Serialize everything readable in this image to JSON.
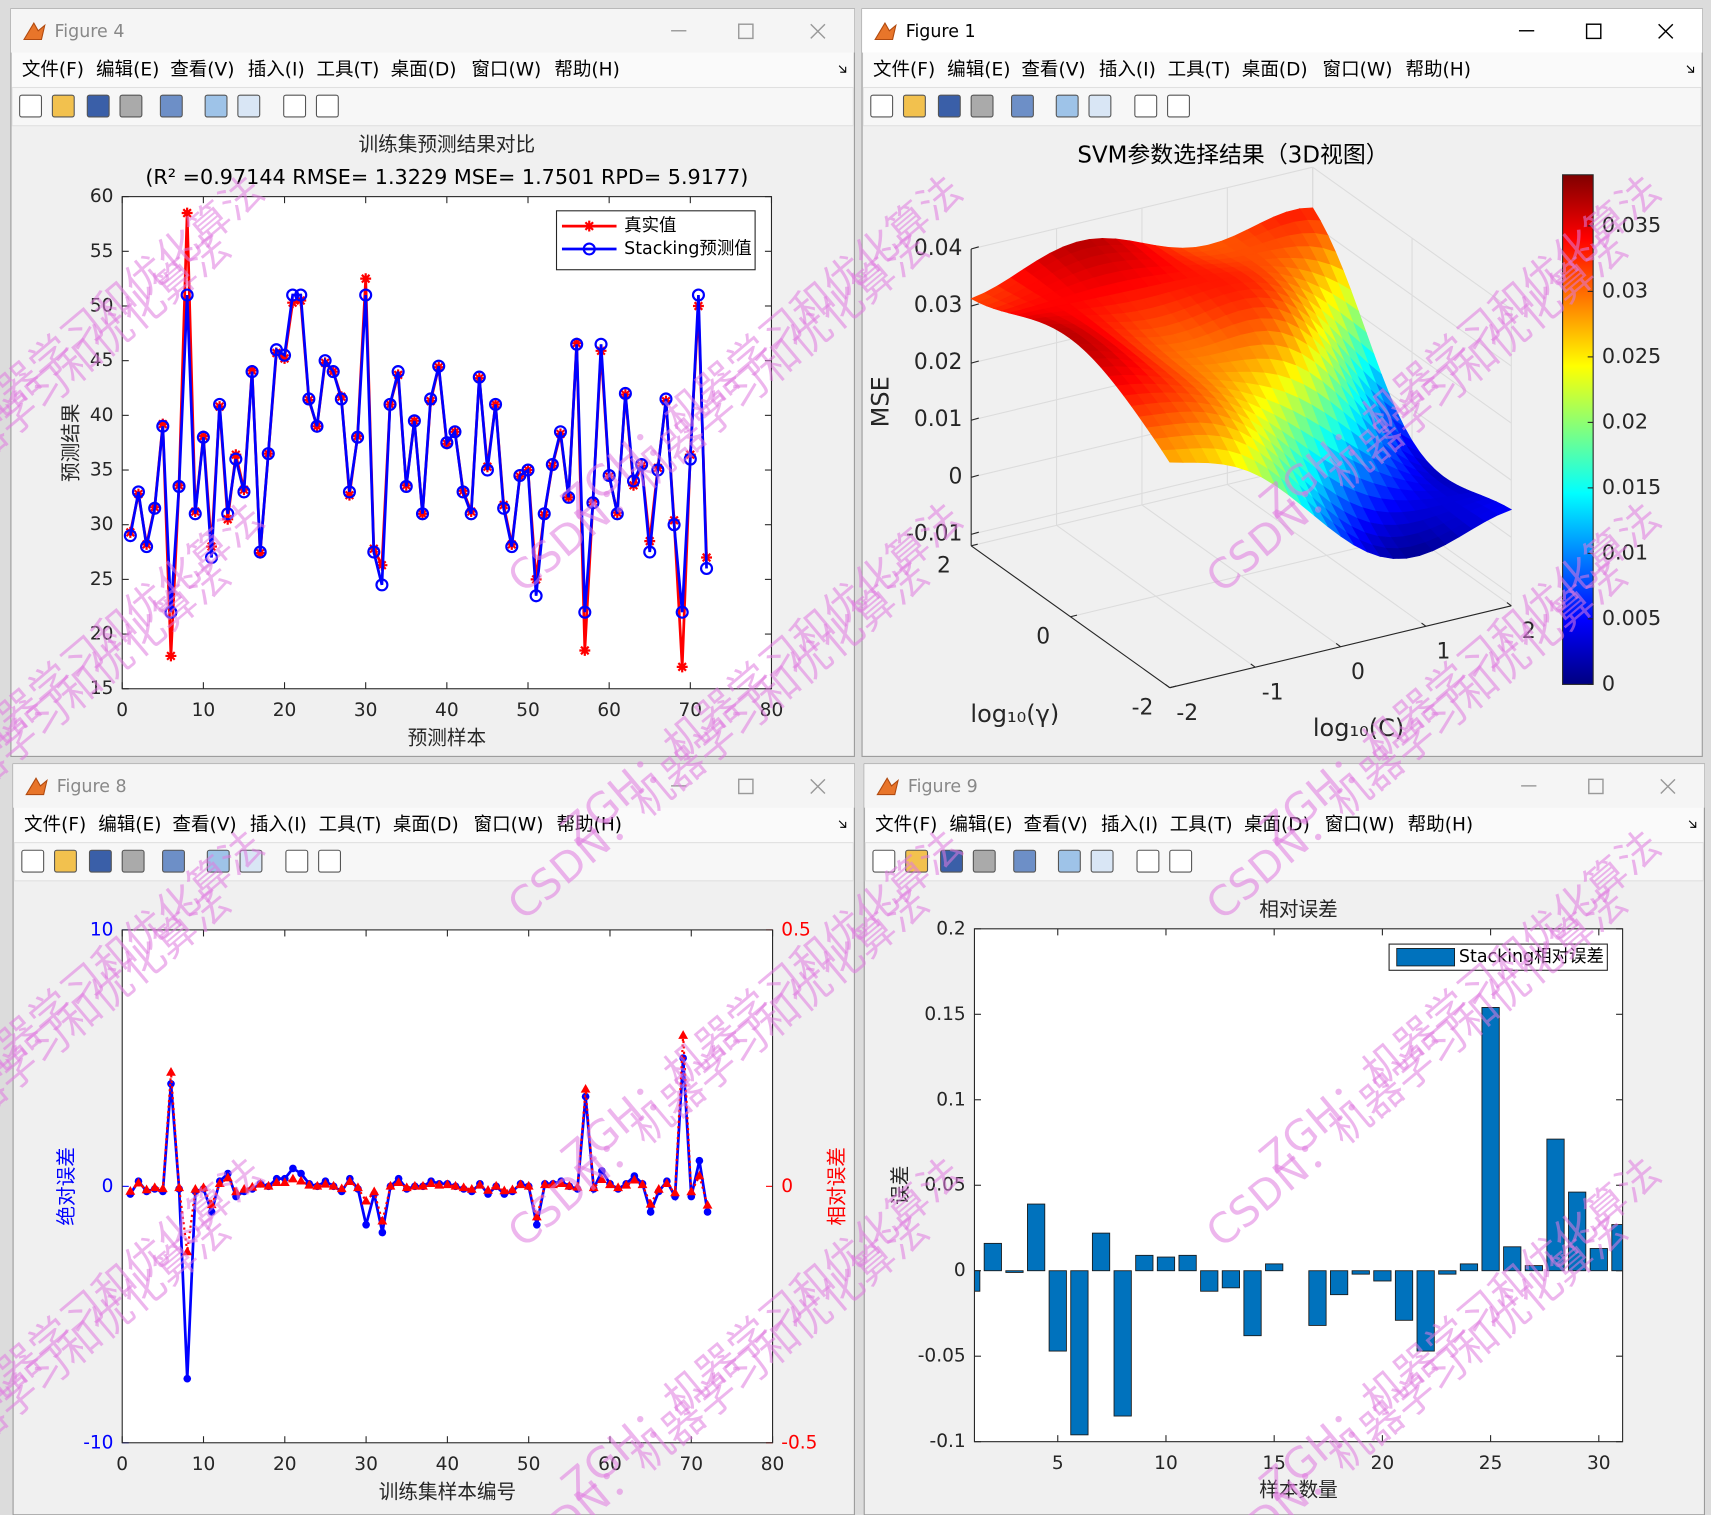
{
  "windows": [
    {
      "title": "Figure 4"
    },
    {
      "title": "Figure 1"
    },
    {
      "title": "Figure 8"
    },
    {
      "title": "Figure 9"
    }
  ],
  "menu": [
    "文件(F)",
    "编辑(E)",
    "查看(V)",
    "插入(I)",
    "工具(T)",
    "桌面(D)",
    "窗口(W)",
    "帮助(H)"
  ],
  "watermark": [
    "ZGH：机器学习和优化算法",
    "CSDN：机器学习和优化算法"
  ],
  "chart_data": [
    {
      "type": "line",
      "title": "训练集预测结果对比",
      "subtitle": "(R² =0.97144 RMSE= 1.3229 MSE= 1.7501 RPD= 5.9177)",
      "xlabel": "预测样本",
      "ylabel": "预测结果",
      "x": [
        1,
        2,
        3,
        4,
        5,
        6,
        7,
        8,
        9,
        10,
        11,
        12,
        13,
        14,
        15,
        16,
        17,
        18,
        19,
        20,
        21,
        22,
        23,
        24,
        25,
        26,
        27,
        28,
        29,
        30,
        31,
        32,
        33,
        34,
        35,
        36,
        37,
        38,
        39,
        40,
        41,
        42,
        43,
        44,
        45,
        46,
        47,
        48,
        49,
        50,
        51,
        52,
        53,
        54,
        55,
        56,
        57,
        58,
        59,
        60,
        61,
        62,
        63,
        64,
        65,
        66,
        67,
        68,
        69,
        70,
        71,
        72
      ],
      "series": [
        {
          "name": "真实值",
          "color": "#ff0000",
          "marker": "star",
          "linestyle": "solid",
          "values": [
            29.3,
            32.8,
            28.2,
            31.6,
            39.2,
            18,
            33.6,
            58.5,
            31.2,
            38.1,
            28,
            40.8,
            30.5,
            36.4,
            33.2,
            44.1,
            27.4,
            36.5,
            45.7,
            45.2,
            50.3,
            50.5,
            41.4,
            39,
            44.8,
            44,
            41.7,
            32.7,
            38.1,
            52.5,
            27.8,
            26.3,
            41,
            43.7,
            33.6,
            39.5,
            31,
            41.3,
            44.4,
            37.4,
            38.5,
            33.1,
            31.2,
            43.4,
            35.3,
            41,
            31.8,
            28.2,
            34.4,
            35,
            25,
            30.9,
            35.4,
            38.3,
            32.5,
            46.6,
            18.5,
            32.1,
            45.9,
            34.4,
            31.1,
            41.9,
            33.6,
            35.4,
            28.5,
            35.2,
            41.3,
            30.4,
            17,
            36.4,
            50,
            27
          ]
        },
        {
          "name": "Stacking预测值",
          "color": "#0000ff",
          "marker": "circle",
          "linestyle": "solid",
          "values": [
            29,
            33,
            28,
            31.5,
            39,
            22,
            33.5,
            51,
            31,
            38,
            27,
            41,
            31,
            36,
            33,
            44,
            27.5,
            36.5,
            46,
            45.5,
            51,
            51,
            41.5,
            39,
            45,
            44,
            41.5,
            33,
            38,
            51,
            27.5,
            24.5,
            41,
            44,
            33.5,
            39.5,
            31,
            41.5,
            44.5,
            37.5,
            38.5,
            33,
            31,
            43.5,
            35,
            41,
            31.5,
            28,
            34.5,
            35,
            23.5,
            31,
            35.5,
            38.5,
            32.5,
            46.5,
            22,
            32,
            46.5,
            34.5,
            31,
            42,
            34,
            35.5,
            27.5,
            35,
            41.5,
            30,
            22,
            36,
            51,
            26
          ]
        }
      ],
      "xlim": [
        0,
        80
      ],
      "xticks": [
        0,
        10,
        20,
        30,
        40,
        50,
        60,
        70,
        80
      ],
      "ylim": [
        15,
        60
      ],
      "yticks": [
        15,
        20,
        25,
        30,
        35,
        40,
        45,
        50,
        55,
        60
      ],
      "legend": "northeast"
    },
    {
      "type": "surface",
      "title": "SVM参数选择结果（3D视图）",
      "xlabel": "log₁₀(C)",
      "ylabel": "log₁₀(γ)",
      "zlabel": "MSE",
      "xlim": [
        -2,
        2
      ],
      "xticks": [
        -2,
        -1,
        0,
        1,
        2
      ],
      "ylim": [
        -2,
        2
      ],
      "yticks": [
        -2,
        0,
        2
      ],
      "zlim": [
        -0.012,
        0.04
      ],
      "zticks": [
        -0.01,
        0,
        0.01,
        0.02,
        0.03,
        0.04
      ],
      "colormap": "jet",
      "clim": [
        0,
        0.0389
      ],
      "cticks": [
        0,
        0.005,
        0.01,
        0.015,
        0.02,
        0.025,
        0.03,
        0.035
      ],
      "grid": true
    },
    {
      "type": "line",
      "xlabel": "训练集样本编号",
      "ylabel": "绝对误差",
      "y2label": "相对误差",
      "ycolor": "#0000ff",
      "y2color": "#ff0000",
      "x": [
        1,
        2,
        3,
        4,
        5,
        6,
        7,
        8,
        9,
        10,
        11,
        12,
        13,
        14,
        15,
        16,
        17,
        18,
        19,
        20,
        21,
        22,
        23,
        24,
        25,
        26,
        27,
        28,
        29,
        30,
        31,
        32,
        33,
        34,
        35,
        36,
        37,
        38,
        39,
        40,
        41,
        42,
        43,
        44,
        45,
        46,
        47,
        48,
        49,
        50,
        51,
        52,
        53,
        54,
        55,
        56,
        57,
        58,
        59,
        60,
        61,
        62,
        63,
        64,
        65,
        66,
        67,
        68,
        69,
        70,
        71,
        72
      ],
      "series": [
        {
          "color": "#0000ff",
          "marker": "dot",
          "linestyle": "solid",
          "values": [
            -0.3,
            0.2,
            -0.2,
            -0.1,
            -0.2,
            4,
            -0.1,
            -7.5,
            -0.2,
            -0.1,
            -1,
            0.2,
            0.5,
            -0.4,
            -0.2,
            -0.1,
            0.1,
            0,
            0.3,
            0.3,
            0.7,
            0.5,
            0.1,
            0,
            0.2,
            0,
            -0.2,
            0.3,
            -0.1,
            -1.5,
            -0.3,
            -1.8,
            0,
            0.3,
            -0.1,
            0,
            0,
            0.2,
            0.1,
            0.1,
            0,
            -0.1,
            -0.2,
            0.1,
            -0.3,
            0,
            -0.3,
            -0.2,
            0.1,
            0,
            -1.5,
            0.1,
            0.1,
            0.2,
            0,
            -0.1,
            3.5,
            -0.1,
            0.6,
            0.1,
            -0.1,
            0.1,
            0.4,
            0.1,
            -1,
            -0.2,
            0.2,
            -0.4,
            5,
            -0.4,
            1,
            -1
          ]
        },
        {
          "color": "#ff0000",
          "marker": "triangle",
          "linestyle": "dotted",
          "axis": "y2",
          "values": [
            -0.01,
            0.006,
            -0.007,
            -0.003,
            -0.005,
            0.222,
            -0.003,
            -0.128,
            -0.006,
            -0.003,
            -0.036,
            0.005,
            0.016,
            -0.011,
            -0.006,
            -0.002,
            0.004,
            0,
            0.007,
            0.007,
            0.014,
            0.01,
            0.002,
            0,
            0.004,
            0,
            -0.005,
            0.009,
            -0.003,
            -0.029,
            -0.011,
            -0.068,
            0,
            0.007,
            -0.003,
            0,
            0,
            0.005,
            0.002,
            0.003,
            0,
            -0.003,
            -0.006,
            0.002,
            -0.008,
            0,
            -0.009,
            -0.007,
            0.003,
            0,
            -0.06,
            0.003,
            0.003,
            0.005,
            0,
            -0.002,
            0.189,
            -0.003,
            0.013,
            0.003,
            -0.003,
            0.002,
            0.012,
            0.003,
            -0.035,
            -0.006,
            0.005,
            -0.013,
            0.294,
            -0.011,
            0.02,
            -0.037
          ]
        }
      ],
      "xlim": [
        0,
        80
      ],
      "xticks": [
        0,
        10,
        20,
        30,
        40,
        50,
        60,
        70,
        80
      ],
      "ylim": [
        -10,
        10
      ],
      "yticks": [
        -10,
        0,
        10
      ],
      "y2lim": [
        -0.5,
        0.5
      ],
      "y2ticks": [
        -0.5,
        0,
        0.5
      ]
    },
    {
      "type": "bar",
      "title": "相对误差",
      "xlabel": "样本数量",
      "ylabel": "误差",
      "x": [
        1,
        2,
        3,
        4,
        5,
        6,
        7,
        8,
        9,
        10,
        11,
        12,
        13,
        14,
        15,
        16,
        17,
        18,
        19,
        20,
        21,
        22,
        23,
        24,
        25,
        26,
        27,
        28,
        29,
        30,
        31
      ],
      "series": [
        {
          "name": "Stacking相对误差",
          "color": "#0072bd",
          "values": [
            -0.012,
            0.016,
            -0.001,
            0.039,
            -0.047,
            -0.096,
            0.022,
            -0.085,
            0.009,
            0.008,
            0.009,
            -0.012,
            -0.01,
            -0.038,
            0.004,
            0,
            -0.032,
            -0.014,
            -0.002,
            -0.006,
            -0.029,
            -0.047,
            -0.002,
            0.004,
            0.154,
            0.014,
            0.003,
            0.077,
            0.046,
            0.013,
            0.027
          ]
        }
      ],
      "xlim": [
        1.15,
        31.1
      ],
      "xticks": [
        5,
        10,
        15,
        20,
        25,
        30
      ],
      "ylim": [
        -0.1,
        0.2
      ],
      "yticks": [
        -0.1,
        -0.05,
        0,
        0.05,
        0.1,
        0.15,
        0.2
      ],
      "legend": "northeast"
    }
  ]
}
